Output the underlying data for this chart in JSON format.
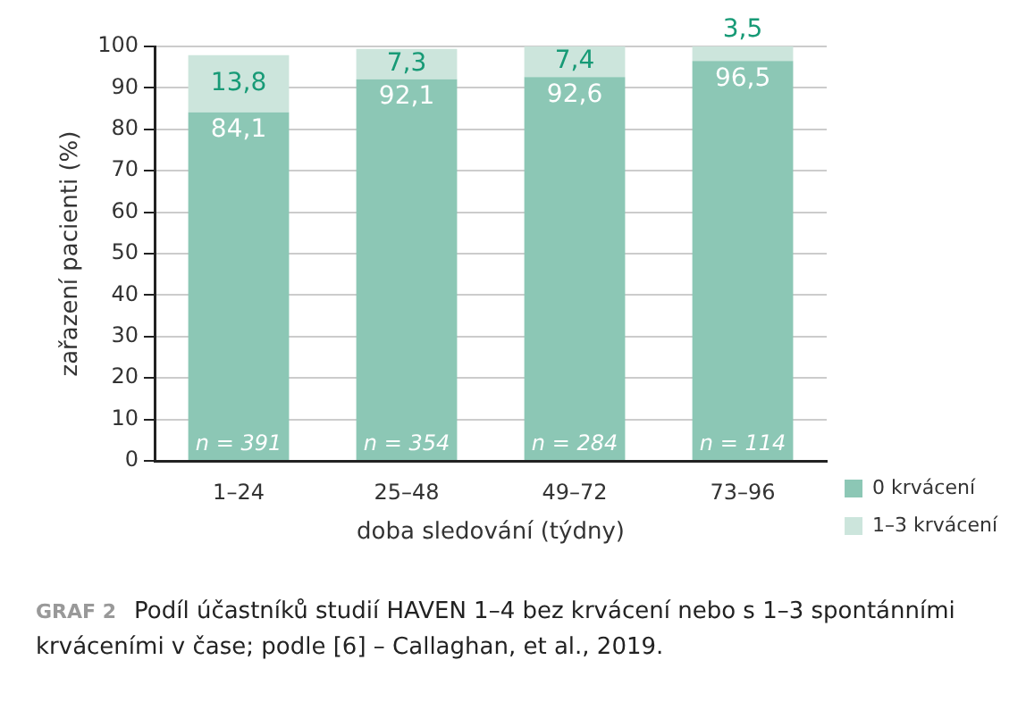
{
  "chart_data": {
    "type": "bar",
    "stacked": true,
    "xlabel": "doba sledování (týdny)",
    "ylabel": "zařazení pacienti (%)",
    "categories": [
      "1–24",
      "25–48",
      "49–72",
      "73–96"
    ],
    "series": [
      {
        "name": "0 krvácení",
        "color": "#8cc7b5",
        "values": [
          84.1,
          92.1,
          92.6,
          96.5
        ],
        "value_labels": [
          "84,1",
          "92,1",
          "92,6",
          "96,5"
        ]
      },
      {
        "name": "1–3 krvácení",
        "color": "#cce5dc",
        "values": [
          13.8,
          7.3,
          7.4,
          3.5
        ],
        "value_labels": [
          "13,8",
          "7,3",
          "7,4",
          "3,5"
        ]
      }
    ],
    "ylim": [
      0,
      100
    ],
    "yticks": [
      0,
      10,
      20,
      30,
      40,
      50,
      60,
      70,
      80,
      90,
      100
    ],
    "grid": "y",
    "legend": "bottom right",
    "annotations": [
      "n = 391",
      "n = 354",
      "n = 284",
      "n = 114",
      "GRAF 2",
      "Podíl účastníků studií HAVEN 1–4 bez krvácení nebo s 1–3 spontánními krváceními v čase; podle [6] – Callaghan, et al., 2019."
    ]
  }
}
